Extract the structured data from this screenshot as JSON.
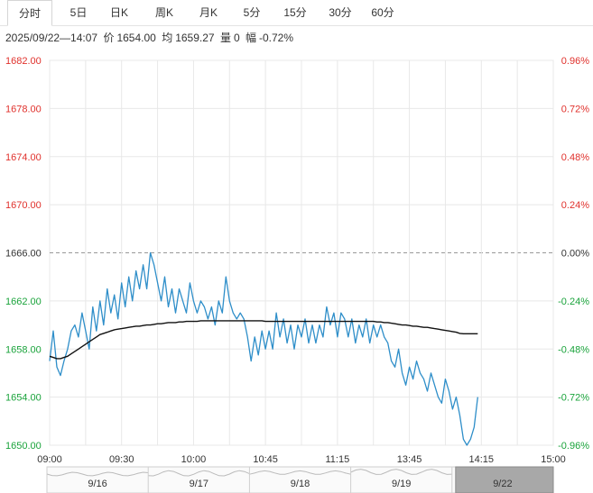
{
  "tabs": [
    {
      "label": "分时",
      "active": true
    },
    {
      "label": "5日",
      "active": false
    },
    {
      "label": "日K",
      "active": false
    },
    {
      "label": "周K",
      "active": false
    },
    {
      "label": "月K",
      "active": false
    },
    {
      "label": "5分",
      "active": false
    },
    {
      "label": "15分",
      "active": false
    },
    {
      "label": "30分",
      "active": false
    },
    {
      "label": "60分",
      "active": false
    }
  ],
  "info": {
    "datetime": "2025/09/22—14:07",
    "price_label": "价",
    "price": "1654.00",
    "avg_label": "均",
    "avg": "1659.27",
    "volume_label": "量",
    "volume": "0",
    "change_label": "幅",
    "change": "-0.72%"
  },
  "colors": {
    "up": "#e0312c",
    "down": "#1aa33b",
    "flat": "#333333",
    "price_line": "#2e8ec9",
    "avg_line": "#111111",
    "grid": "#e8e8e8"
  },
  "chart_data": {
    "type": "line",
    "x_ticks": [
      "09:00",
      "09:30",
      "10:00",
      "10:45",
      "11:15",
      "13:45",
      "14:15",
      "15:00"
    ],
    "y_ticks": [
      "1682.00",
      "1678.00",
      "1674.00",
      "1670.00",
      "1666.00",
      "1662.00",
      "1658.00",
      "1654.00",
      "1650.00"
    ],
    "pct_ticks": [
      "0.96%",
      "0.72%",
      "0.48%",
      "0.24%",
      "0.00%",
      "-0.24%",
      "-0.48%",
      "-0.72%",
      "-0.96%"
    ],
    "ylim": [
      1650,
      1682
    ],
    "base_price": 1666,
    "session_end_index": 140,
    "series": [
      {
        "role": "price",
        "values": [
          1657,
          1659.5,
          1656.5,
          1655.8,
          1657,
          1658,
          1659.5,
          1660,
          1659,
          1661,
          1659.5,
          1658,
          1661.5,
          1659.5,
          1662,
          1660,
          1663,
          1661,
          1662.5,
          1660.5,
          1663.5,
          1661.5,
          1664,
          1662,
          1664.5,
          1663,
          1665,
          1663,
          1666,
          1665,
          1663.5,
          1662,
          1664,
          1661.5,
          1663,
          1661,
          1663,
          1662,
          1661,
          1663.5,
          1662,
          1661,
          1662,
          1661.5,
          1660.5,
          1661.5,
          1660,
          1662,
          1661,
          1664,
          1662,
          1661,
          1660.5,
          1661,
          1660.5,
          1659,
          1657,
          1659,
          1657.5,
          1659.5,
          1658,
          1659.5,
          1658,
          1661,
          1659,
          1660.5,
          1658.5,
          1660,
          1658,
          1660,
          1659,
          1660.5,
          1658.5,
          1660,
          1658.5,
          1660,
          1659,
          1661.5,
          1660,
          1661,
          1659,
          1661,
          1660.5,
          1659,
          1660.5,
          1658.5,
          1660,
          1659,
          1660.5,
          1658.5,
          1660,
          1659,
          1660,
          1659,
          1658.5,
          1657,
          1656.5,
          1658,
          1656,
          1655,
          1656.5,
          1655.5,
          1657,
          1656,
          1655.5,
          1654.5,
          1656,
          1655,
          1654,
          1653.5,
          1655.5,
          1654.5,
          1653,
          1654,
          1652.5,
          1650.5,
          1650,
          1650.5,
          1651.5,
          1654
        ],
        "start_index": 0
      },
      {
        "role": "average",
        "values": [
          1657.4,
          1657.3,
          1657.2,
          1657.2,
          1657.3,
          1657.4,
          1657.6,
          1657.8,
          1658.0,
          1658.2,
          1658.4,
          1658.6,
          1658.8,
          1659.0,
          1659.2,
          1659.3,
          1659.4,
          1659.5,
          1659.6,
          1659.65,
          1659.7,
          1659.75,
          1659.8,
          1659.85,
          1659.9,
          1659.9,
          1659.95,
          1660.0,
          1660.0,
          1660.05,
          1660.1,
          1660.1,
          1660.15,
          1660.2,
          1660.2,
          1660.2,
          1660.25,
          1660.25,
          1660.3,
          1660.3,
          1660.3,
          1660.3,
          1660.35,
          1660.35,
          1660.35,
          1660.35,
          1660.35,
          1660.35,
          1660.35,
          1660.35,
          1660.35,
          1660.35,
          1660.35,
          1660.35,
          1660.35,
          1660.35,
          1660.35,
          1660.35,
          1660.35,
          1660.35,
          1660.3,
          1660.3,
          1660.3,
          1660.3,
          1660.3,
          1660.3,
          1660.3,
          1660.3,
          1660.3,
          1660.3,
          1660.3,
          1660.3,
          1660.3,
          1660.3,
          1660.3,
          1660.3,
          1660.3,
          1660.3,
          1660.3,
          1660.3,
          1660.3,
          1660.3,
          1660.3,
          1660.3,
          1660.3,
          1660.3,
          1660.3,
          1660.3,
          1660.3,
          1660.3,
          1660.3,
          1660.25,
          1660.25,
          1660.2,
          1660.2,
          1660.15,
          1660.1,
          1660.05,
          1660.0,
          1660.0,
          1659.95,
          1659.9,
          1659.9,
          1659.85,
          1659.8,
          1659.8,
          1659.75,
          1659.7,
          1659.65,
          1659.6,
          1659.55,
          1659.5,
          1659.45,
          1659.4,
          1659.3,
          1659.27,
          1659.27,
          1659.27,
          1659.27,
          1659.27
        ],
        "start_index": 0
      }
    ]
  },
  "navigator": {
    "dates": [
      "9/16",
      "9/17",
      "9/18",
      "9/19",
      "9/22"
    ],
    "selected": "9/22"
  }
}
